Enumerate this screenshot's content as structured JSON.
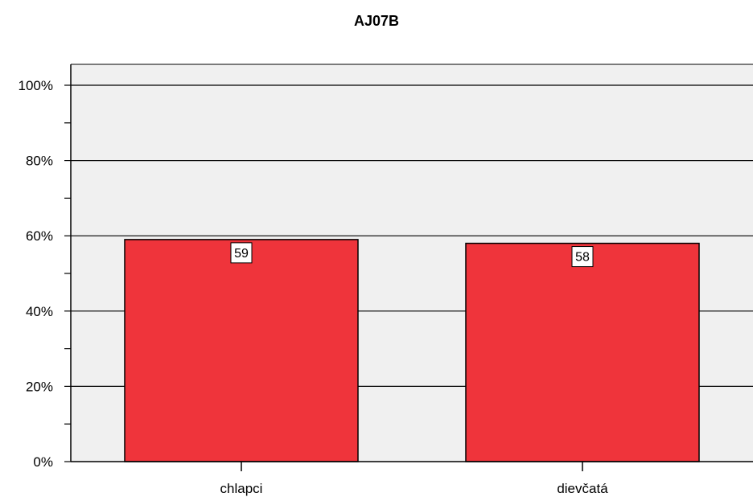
{
  "chart_data": {
    "type": "bar",
    "title": "AJ07B",
    "xlabel": "",
    "ylabel": "",
    "categories": [
      "chlapci",
      "dievčatá"
    ],
    "values": [
      59,
      58
    ],
    "data_labels": [
      "59",
      "58"
    ],
    "ylim": [
      0,
      100
    ],
    "y_ticks": [
      0,
      20,
      40,
      60,
      80,
      100
    ],
    "y_minor_ticks": [
      10,
      30,
      50,
      70,
      90
    ],
    "y_tick_labels": [
      "0%",
      "20%",
      "40%",
      "60%",
      "80%",
      "100%"
    ],
    "grid": true,
    "legend": "none",
    "colors": {
      "bar": "#ef343b",
      "plot_background": "#f0f0f0",
      "gridline": "#000000",
      "axis": "#000000"
    }
  }
}
